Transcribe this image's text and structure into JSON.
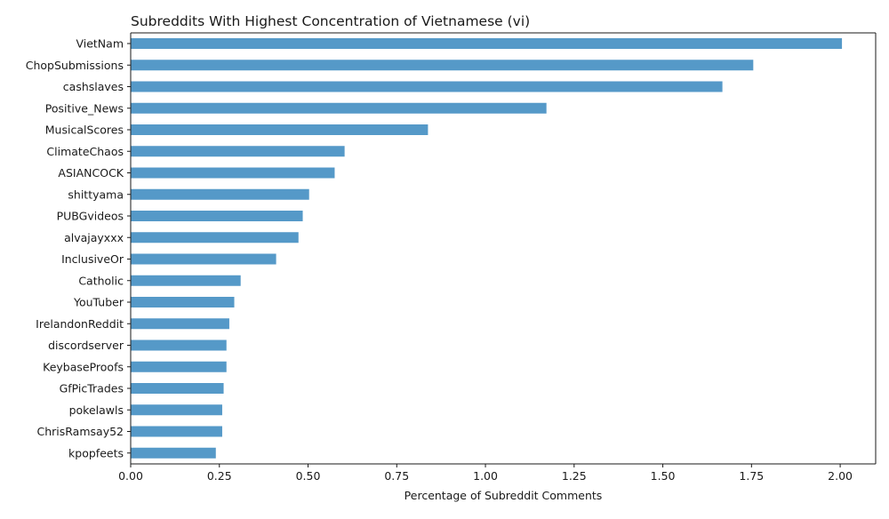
{
  "chart_data": {
    "type": "bar",
    "orientation": "horizontal",
    "title": "Subreddits With Highest Concentration of Vietnamese (vi)",
    "xlabel": "Percentage of Subreddit Comments",
    "ylabel": "",
    "xlim": [
      0,
      2.1
    ],
    "xticks": [
      "0.00",
      "0.25",
      "0.50",
      "0.75",
      "1.00",
      "1.25",
      "1.50",
      "1.75",
      "2.00"
    ],
    "grid": false,
    "bar_color": "#5599c8",
    "categories": [
      "VietNam",
      "ChopSubmissions",
      "cashslaves",
      "Positive_News",
      "MusicalScores",
      "ClimateChaos",
      "ASIANCOCK",
      "shittyama",
      "PUBGvideos",
      "alvajayxxx",
      "InclusiveOr",
      "Catholic",
      "YouTuber",
      "IrelandonReddit",
      "discordserver",
      "KeybaseProofs",
      "GfPicTrades",
      "pokelawls",
      "ChrisRamsay52",
      "kpopfeets"
    ],
    "values": [
      2.005,
      1.755,
      1.668,
      1.172,
      0.838,
      0.603,
      0.575,
      0.503,
      0.485,
      0.473,
      0.41,
      0.31,
      0.292,
      0.278,
      0.27,
      0.27,
      0.262,
      0.258,
      0.258,
      0.24
    ]
  }
}
